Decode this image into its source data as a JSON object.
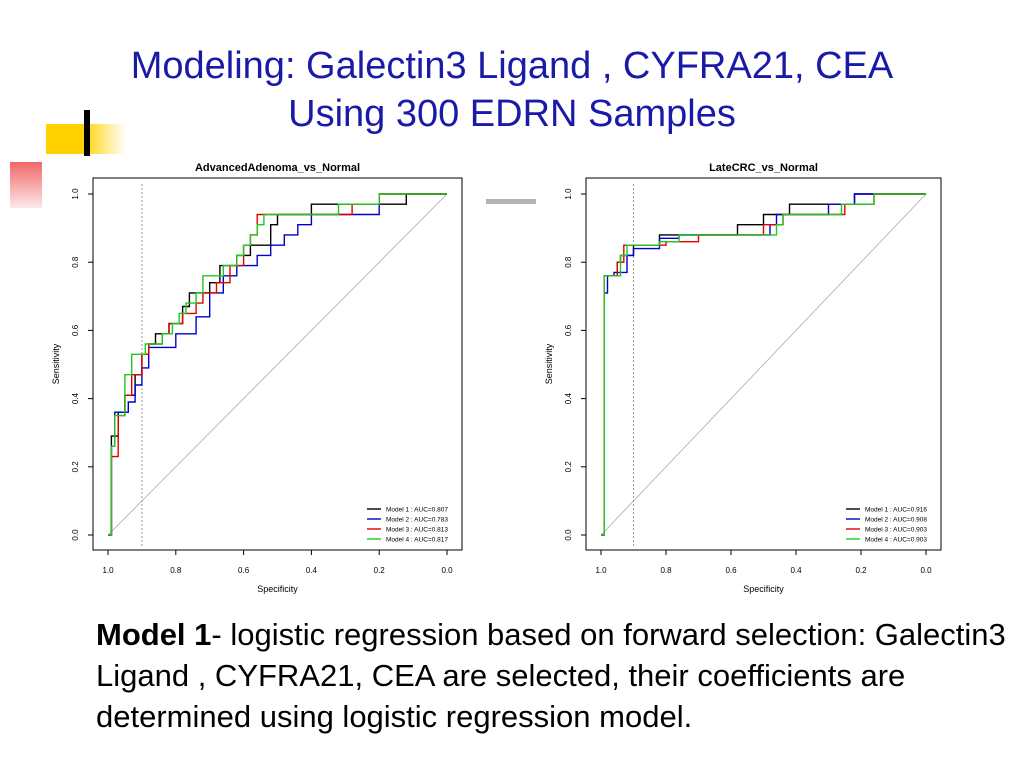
{
  "slide": {
    "title_line1": "Modeling: Galectin3 Ligand , CYFRA21, CEA",
    "title_line2": "Using 300 EDRN Samples",
    "caption_bold": "Model 1",
    "caption_rest": "- logistic regression based on forward selection: Galectin3 Ligand , CYFRA21, CEA are selected, their coefficients are determined using logistic regression model.",
    "colors": {
      "title": "#1a1aa8",
      "accent_yellow": "#ffd200",
      "accent_red": "#f28a8a",
      "divider_gray": "#b4b4b4"
    }
  },
  "chart_data": [
    {
      "type": "line",
      "title": "AdvancedAdenoma_vs_Normal",
      "xlabel": "Specificity",
      "ylabel": "Sensitivity",
      "xlim": [
        1.0,
        0.0
      ],
      "ylim": [
        0.0,
        1.0
      ],
      "xticks": [
        "1.0",
        "0.8",
        "0.6",
        "0.4",
        "0.2",
        "0.0"
      ],
      "yticks": [
        "0.0",
        "0.2",
        "0.4",
        "0.6",
        "0.8",
        "1.0"
      ],
      "reference_specificity": 0.9,
      "legend_position": "bottom-right",
      "series": [
        {
          "name": "Model 1 : AUC=0.807",
          "color": "#000000",
          "points": [
            [
              1,
              0
            ],
            [
              0.99,
              0
            ],
            [
              0.99,
              0.29
            ],
            [
              0.97,
              0.29
            ],
            [
              0.97,
              0.36
            ],
            [
              0.95,
              0.36
            ],
            [
              0.95,
              0.41
            ],
            [
              0.92,
              0.41
            ],
            [
              0.92,
              0.47
            ],
            [
              0.9,
              0.47
            ],
            [
              0.9,
              0.53
            ],
            [
              0.88,
              0.53
            ],
            [
              0.88,
              0.56
            ],
            [
              0.86,
              0.56
            ],
            [
              0.86,
              0.59
            ],
            [
              0.82,
              0.59
            ],
            [
              0.82,
              0.62
            ],
            [
              0.78,
              0.62
            ],
            [
              0.78,
              0.67
            ],
            [
              0.76,
              0.67
            ],
            [
              0.76,
              0.71
            ],
            [
              0.7,
              0.71
            ],
            [
              0.7,
              0.74
            ],
            [
              0.67,
              0.74
            ],
            [
              0.67,
              0.79
            ],
            [
              0.62,
              0.79
            ],
            [
              0.62,
              0.82
            ],
            [
              0.58,
              0.82
            ],
            [
              0.58,
              0.85
            ],
            [
              0.52,
              0.85
            ],
            [
              0.52,
              0.91
            ],
            [
              0.5,
              0.91
            ],
            [
              0.5,
              0.94
            ],
            [
              0.4,
              0.94
            ],
            [
              0.4,
              0.97
            ],
            [
              0.12,
              0.97
            ],
            [
              0.12,
              1.0
            ],
            [
              0.0,
              1.0
            ]
          ]
        },
        {
          "name": "Model 2 : AUC=0.783",
          "color": "#0000cc",
          "points": [
            [
              1,
              0
            ],
            [
              0.99,
              0
            ],
            [
              0.99,
              0.26
            ],
            [
              0.98,
              0.26
            ],
            [
              0.98,
              0.36
            ],
            [
              0.94,
              0.36
            ],
            [
              0.94,
              0.39
            ],
            [
              0.92,
              0.39
            ],
            [
              0.92,
              0.44
            ],
            [
              0.9,
              0.44
            ],
            [
              0.9,
              0.49
            ],
            [
              0.88,
              0.49
            ],
            [
              0.88,
              0.55
            ],
            [
              0.8,
              0.55
            ],
            [
              0.8,
              0.59
            ],
            [
              0.74,
              0.59
            ],
            [
              0.74,
              0.64
            ],
            [
              0.7,
              0.64
            ],
            [
              0.7,
              0.71
            ],
            [
              0.66,
              0.71
            ],
            [
              0.66,
              0.76
            ],
            [
              0.62,
              0.76
            ],
            [
              0.62,
              0.79
            ],
            [
              0.56,
              0.79
            ],
            [
              0.56,
              0.82
            ],
            [
              0.52,
              0.82
            ],
            [
              0.52,
              0.85
            ],
            [
              0.48,
              0.85
            ],
            [
              0.48,
              0.88
            ],
            [
              0.44,
              0.88
            ],
            [
              0.44,
              0.91
            ],
            [
              0.4,
              0.91
            ],
            [
              0.4,
              0.94
            ],
            [
              0.2,
              0.94
            ],
            [
              0.2,
              1.0
            ],
            [
              0.0,
              1.0
            ]
          ]
        },
        {
          "name": "Model 3 : AUC=0.813",
          "color": "#e00000",
          "points": [
            [
              1,
              0
            ],
            [
              0.99,
              0
            ],
            [
              0.99,
              0.23
            ],
            [
              0.97,
              0.23
            ],
            [
              0.97,
              0.35
            ],
            [
              0.95,
              0.35
            ],
            [
              0.95,
              0.41
            ],
            [
              0.93,
              0.41
            ],
            [
              0.93,
              0.47
            ],
            [
              0.9,
              0.47
            ],
            [
              0.9,
              0.53
            ],
            [
              0.88,
              0.53
            ],
            [
              0.88,
              0.56
            ],
            [
              0.84,
              0.56
            ],
            [
              0.84,
              0.59
            ],
            [
              0.82,
              0.59
            ],
            [
              0.82,
              0.62
            ],
            [
              0.78,
              0.62
            ],
            [
              0.78,
              0.65
            ],
            [
              0.74,
              0.65
            ],
            [
              0.74,
              0.68
            ],
            [
              0.72,
              0.68
            ],
            [
              0.72,
              0.71
            ],
            [
              0.68,
              0.71
            ],
            [
              0.68,
              0.74
            ],
            [
              0.64,
              0.74
            ],
            [
              0.64,
              0.79
            ],
            [
              0.6,
              0.79
            ],
            [
              0.6,
              0.85
            ],
            [
              0.58,
              0.85
            ],
            [
              0.58,
              0.88
            ],
            [
              0.56,
              0.88
            ],
            [
              0.56,
              0.94
            ],
            [
              0.28,
              0.94
            ],
            [
              0.28,
              0.97
            ],
            [
              0.2,
              0.97
            ],
            [
              0.2,
              1.0
            ],
            [
              0.0,
              1.0
            ]
          ]
        },
        {
          "name": "Model 4 : AUC=0.817",
          "color": "#22c822",
          "points": [
            [
              1,
              0
            ],
            [
              0.99,
              0
            ],
            [
              0.99,
              0.26
            ],
            [
              0.98,
              0.26
            ],
            [
              0.98,
              0.35
            ],
            [
              0.95,
              0.35
            ],
            [
              0.95,
              0.47
            ],
            [
              0.93,
              0.47
            ],
            [
              0.93,
              0.53
            ],
            [
              0.89,
              0.53
            ],
            [
              0.89,
              0.56
            ],
            [
              0.84,
              0.56
            ],
            [
              0.84,
              0.59
            ],
            [
              0.81,
              0.59
            ],
            [
              0.81,
              0.62
            ],
            [
              0.79,
              0.62
            ],
            [
              0.79,
              0.65
            ],
            [
              0.77,
              0.65
            ],
            [
              0.77,
              0.68
            ],
            [
              0.74,
              0.68
            ],
            [
              0.74,
              0.71
            ],
            [
              0.72,
              0.71
            ],
            [
              0.72,
              0.76
            ],
            [
              0.66,
              0.76
            ],
            [
              0.66,
              0.79
            ],
            [
              0.62,
              0.79
            ],
            [
              0.62,
              0.82
            ],
            [
              0.6,
              0.82
            ],
            [
              0.6,
              0.85
            ],
            [
              0.58,
              0.85
            ],
            [
              0.58,
              0.88
            ],
            [
              0.56,
              0.88
            ],
            [
              0.56,
              0.91
            ],
            [
              0.54,
              0.91
            ],
            [
              0.54,
              0.94
            ],
            [
              0.32,
              0.94
            ],
            [
              0.32,
              0.97
            ],
            [
              0.2,
              0.97
            ],
            [
              0.2,
              1.0
            ],
            [
              0.0,
              1.0
            ]
          ]
        }
      ]
    },
    {
      "type": "line",
      "title": "LateCRC_vs_Normal",
      "xlabel": "Specificity",
      "ylabel": "Sensitivity",
      "xlim": [
        1.0,
        0.0
      ],
      "ylim": [
        0.0,
        1.0
      ],
      "xticks": [
        "1.0",
        "0.8",
        "0.6",
        "0.4",
        "0.2",
        "0.0"
      ],
      "yticks": [
        "0.0",
        "0.2",
        "0.4",
        "0.6",
        "0.8",
        "1.0"
      ],
      "reference_specificity": 0.9,
      "legend_position": "bottom-right",
      "series": [
        {
          "name": "Model 1 : AUC=0.916",
          "color": "#000000",
          "points": [
            [
              1,
              0
            ],
            [
              0.99,
              0
            ],
            [
              0.99,
              0.76
            ],
            [
              0.95,
              0.76
            ],
            [
              0.95,
              0.8
            ],
            [
              0.94,
              0.8
            ],
            [
              0.94,
              0.82
            ],
            [
              0.9,
              0.82
            ],
            [
              0.9,
              0.85
            ],
            [
              0.82,
              0.85
            ],
            [
              0.82,
              0.88
            ],
            [
              0.58,
              0.88
            ],
            [
              0.58,
              0.91
            ],
            [
              0.5,
              0.91
            ],
            [
              0.5,
              0.94
            ],
            [
              0.42,
              0.94
            ],
            [
              0.42,
              0.97
            ],
            [
              0.22,
              0.97
            ],
            [
              0.22,
              1.0
            ],
            [
              0.0,
              1.0
            ]
          ]
        },
        {
          "name": "Model 2 : AUC=0.908",
          "color": "#0000cc",
          "points": [
            [
              1,
              0
            ],
            [
              0.99,
              0
            ],
            [
              0.99,
              0.71
            ],
            [
              0.98,
              0.71
            ],
            [
              0.98,
              0.76
            ],
            [
              0.96,
              0.76
            ],
            [
              0.96,
              0.77
            ],
            [
              0.92,
              0.77
            ],
            [
              0.92,
              0.82
            ],
            [
              0.9,
              0.82
            ],
            [
              0.9,
              0.84
            ],
            [
              0.82,
              0.84
            ],
            [
              0.82,
              0.87
            ],
            [
              0.76,
              0.87
            ],
            [
              0.76,
              0.88
            ],
            [
              0.48,
              0.88
            ],
            [
              0.48,
              0.91
            ],
            [
              0.46,
              0.91
            ],
            [
              0.46,
              0.94
            ],
            [
              0.3,
              0.94
            ],
            [
              0.3,
              0.97
            ],
            [
              0.22,
              0.97
            ],
            [
              0.22,
              1.0
            ],
            [
              0.0,
              1.0
            ]
          ]
        },
        {
          "name": "Model 3 : AUC=0.903",
          "color": "#e00000",
          "points": [
            [
              1,
              0
            ],
            [
              0.99,
              0
            ],
            [
              0.99,
              0.76
            ],
            [
              0.95,
              0.76
            ],
            [
              0.95,
              0.8
            ],
            [
              0.93,
              0.8
            ],
            [
              0.93,
              0.85
            ],
            [
              0.8,
              0.85
            ],
            [
              0.8,
              0.86
            ],
            [
              0.7,
              0.86
            ],
            [
              0.7,
              0.88
            ],
            [
              0.5,
              0.88
            ],
            [
              0.5,
              0.91
            ],
            [
              0.44,
              0.91
            ],
            [
              0.44,
              0.94
            ],
            [
              0.25,
              0.94
            ],
            [
              0.25,
              0.97
            ],
            [
              0.16,
              0.97
            ],
            [
              0.16,
              1.0
            ],
            [
              0.0,
              1.0
            ]
          ]
        },
        {
          "name": "Model 4 : AUC=0.903",
          "color": "#22c822",
          "points": [
            [
              1,
              0
            ],
            [
              0.99,
              0
            ],
            [
              0.99,
              0.76
            ],
            [
              0.94,
              0.76
            ],
            [
              0.94,
              0.82
            ],
            [
              0.92,
              0.82
            ],
            [
              0.92,
              0.85
            ],
            [
              0.82,
              0.85
            ],
            [
              0.82,
              0.86
            ],
            [
              0.76,
              0.86
            ],
            [
              0.76,
              0.88
            ],
            [
              0.46,
              0.88
            ],
            [
              0.46,
              0.91
            ],
            [
              0.44,
              0.91
            ],
            [
              0.44,
              0.94
            ],
            [
              0.26,
              0.94
            ],
            [
              0.26,
              0.97
            ],
            [
              0.16,
              0.97
            ],
            [
              0.16,
              1.0
            ],
            [
              0.0,
              1.0
            ]
          ]
        }
      ]
    }
  ]
}
